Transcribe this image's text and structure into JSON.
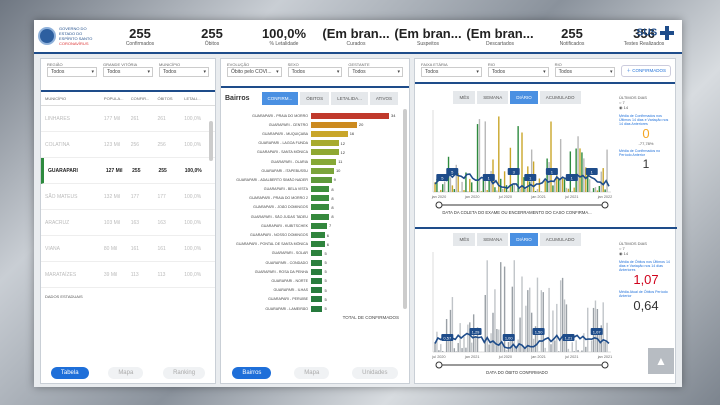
{
  "header": {
    "org_line1": "GOVERNO DO ESTADO DO ESPÍRITO SANTO",
    "org_line2": "CORONAVÍRUS",
    "kpis": [
      {
        "value": "255",
        "label": "Confirmados"
      },
      {
        "value": "255",
        "label": "Óbitos"
      },
      {
        "value": "100,0%",
        "label": "% Letalidade"
      },
      {
        "value": "(Em bran...",
        "label": "Curados"
      },
      {
        "value": "(Em bran...",
        "label": "Suspeitos"
      },
      {
        "value": "(Em bran...",
        "label": "Descartados"
      },
      {
        "value": "255",
        "label": "Notificados"
      },
      {
        "value": "356",
        "label": "Testes Realizados"
      }
    ],
    "sus": "SUS"
  },
  "left_panel": {
    "filters": [
      {
        "label": "REGIÃO",
        "value": "Todos"
      },
      {
        "label": "GRANDE VITÓRIA",
        "value": "Todos"
      },
      {
        "label": "MUNICÍPIO",
        "value": "Todos"
      }
    ],
    "columns": [
      "MUNICÍPIO",
      "POPULA...",
      "CONFIR...",
      "ÓBITOS",
      "LETALI..."
    ],
    "rows": [
      {
        "cells": [
          "LINHARES",
          "177 Mil",
          "261",
          "261",
          "100,0%"
        ],
        "selected": false
      },
      {
        "cells": [
          "COLATINA",
          "123 Mil",
          "256",
          "256",
          "100,0%"
        ],
        "selected": false
      },
      {
        "cells": [
          "GUARAPARI",
          "127 Mil",
          "255",
          "255",
          "100,0%"
        ],
        "selected": true
      },
      {
        "cells": [
          "SÃO MATEUS",
          "132 Mil",
          "177",
          "177",
          "100,0%"
        ],
        "selected": false
      },
      {
        "cells": [
          "ARACRUZ",
          "103 Mil",
          "163",
          "163",
          "100,0%"
        ],
        "selected": false
      },
      {
        "cells": [
          "VIANA",
          "80 Mil",
          "161",
          "161",
          "100,0%"
        ],
        "selected": false
      },
      {
        "cells": [
          "MARATAÍZES",
          "39 Mil",
          "113",
          "113",
          "100,0%"
        ],
        "selected": false
      }
    ],
    "footer_note": "DADOS ESTADUAIS",
    "buttons": [
      "Tabela",
      "Mapa",
      "Ranking"
    ]
  },
  "mid_panel": {
    "filters": [
      {
        "label": "EVOLUÇÃO",
        "value": "Óbito pelo COVI..."
      },
      {
        "label": "SEXO",
        "value": "Todos"
      },
      {
        "label": "GESTANTE",
        "value": "Todos"
      }
    ],
    "title": "Bairros",
    "tabs": [
      "CONFIRM...",
      "ÓBITOS",
      "LETALIDA...",
      "ATIVOS"
    ],
    "footer": "TOTAL DE CONFIRMADOS",
    "buttons": [
      "Bairros",
      "Mapa",
      "Unidades"
    ]
  },
  "right_panel": {
    "filters": [
      {
        "label": "FAIXA ETÁRIA",
        "value": "Todos"
      },
      {
        "label": "RIO",
        "value": "Todos"
      },
      {
        "label": "RIO",
        "value": "Todos"
      }
    ],
    "add_label": "CONFIRMADOS",
    "top_chart": {
      "tabs": [
        "MÊS",
        "SEMANA",
        "DIÁRIO",
        "ACUMULADO"
      ],
      "xlabel": "DATA DA COLETA DO EXAME OU ENCERRAMENTO DO CASO CONFIRMA...",
      "ylabel": "TOTAL DE CONFIRMADOS",
      "side_title": "ÚLTIMOS DIAS",
      "opt1": "7",
      "opt2": "14",
      "side_text1": "Média de Confirmados nos Últimos 14 dias e Variação nos 14 dias Anteriores",
      "side_value": "0",
      "side_change": "-77,78%",
      "side_text2": "Média de Confirmados no Período Anterior",
      "side_value2": "1"
    },
    "bottom_chart": {
      "tabs": [
        "MÊS",
        "SEMANA",
        "DIÁRIO",
        "ACUMULADO"
      ],
      "xlabel": "DATA DO ÓBITO CONFIRMADO",
      "ylabel": "ÓBITOS",
      "side_title": "ÚLTIMOS DIAS",
      "opt1": "7",
      "opt2": "14",
      "side_text1": "Média de Óbitos nos Últimos 14 dias e Variação nos 14 dias Anteriores",
      "side_value": "1,07",
      "side_text2": "Média Atual de Óbitos Período Anterior",
      "side_value2": "0,64"
    }
  },
  "chart_data": [
    {
      "type": "bar",
      "categories": [
        "GUARAPARI - PRAIA DO MORRO",
        "GUARAPARI - CENTRO",
        "GUARAPARI - MUQUIÇABA",
        "GUARAPARI - LAGOA FUNDA",
        "GUARAPARI - SANTA MÔNICA",
        "GUARAPARI - OLARIA",
        "GUARAPARI - ITAPEBUSSU",
        "GUARAPARI - ADALBERTO SIMÃO NADER",
        "GUARAPARI - BELA VISTA",
        "GUARAPARI - PRAIA DO MORRO 2",
        "GUARAPARI - JOÃO DOMINGOS",
        "GUARAPARI - SÃO JUDAS TADEU",
        "GUARAPARI - KUBITSCHEK",
        "GUARAPARI - NOSSO DOMINGOS",
        "GUARAPARI - PONTAL DE SANTA MÔNICA",
        "GUARAPARI - SOLAR",
        "GUARAPARI - CONDADO",
        "GUARAPARI - ROSA DA PENHA",
        "GUARAPARI - NORTE",
        "GUARAPARI - ILHAS",
        "GUARAPARI - PERUÍBE",
        "GUARAPARI - LAMEIRÃO"
      ],
      "values": [
        34,
        20,
        16,
        12,
        12,
        11,
        10,
        9,
        8,
        8,
        8,
        8,
        7,
        6,
        6,
        5,
        5,
        5,
        5,
        5,
        5,
        5
      ],
      "colors": [
        "#c0392b",
        "#cc8a1f",
        "#c9a62a",
        "#a8ab2e",
        "#8fa832",
        "#86a836",
        "#7aa43a",
        "#5e9a3a",
        "#3d8f3c",
        "#3a8d3d",
        "#388b3d",
        "#36893d",
        "#33873d",
        "#30853d",
        "#2e833d",
        "#2c813d",
        "#2b7f3d",
        "#2a7e3d",
        "#297d3d",
        "#287c3d",
        "#277b3d",
        "#267a3d"
      ]
    },
    {
      "type": "line",
      "title": "",
      "x_ticks": [
        "jan 2020",
        "jan 2020",
        "jul 2020",
        "jan 2021",
        "jul 2021",
        "jan 2022"
      ],
      "ylabel": "TOTAL DE CONFIRMADOS",
      "markers": [
        "5",
        "5",
        "1",
        "3",
        "1",
        "1",
        "1",
        "1"
      ]
    },
    {
      "type": "line",
      "title": "",
      "x_ticks": [
        "jul 2020",
        "jan 2021",
        "jul 2020",
        "jan 2021",
        "jul 2021",
        "jan 2021"
      ],
      "ylabel": "ÓBITOS",
      "markers": [
        "0,57",
        "1,29",
        "1,00",
        "1,50",
        "1,21",
        "1,07"
      ]
    }
  ],
  "colors": {
    "accent": "#1e6fd9",
    "header_border": "#1e4c8a",
    "trend": "#1e4c8a",
    "alert": "#d0021b",
    "ok": "#f5a623"
  }
}
